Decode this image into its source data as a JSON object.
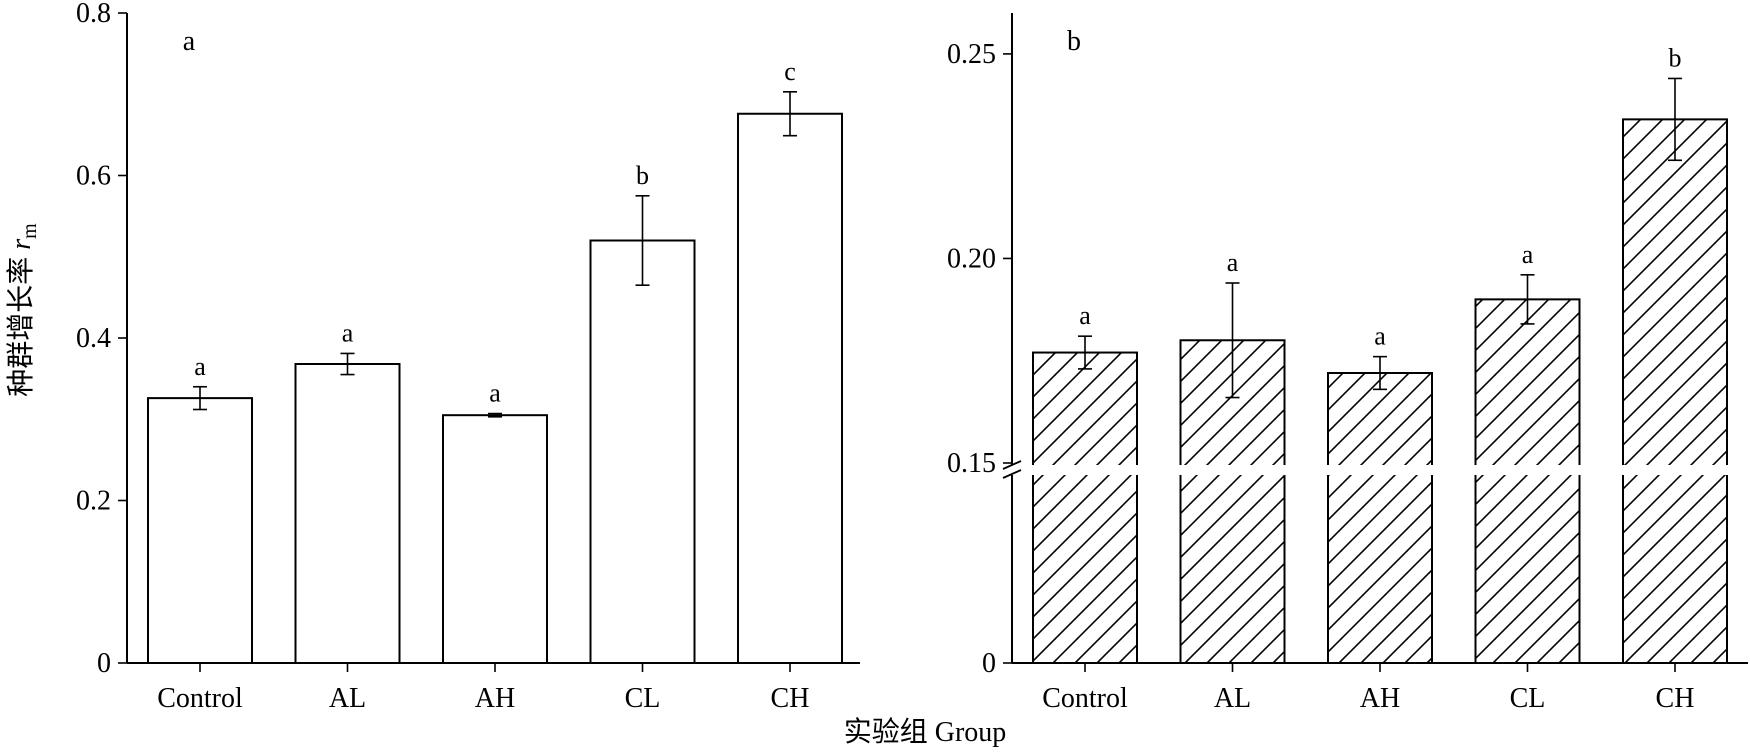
{
  "ylabel": {
    "main": "种群增长率 ",
    "var": "r",
    "sub": "m"
  },
  "xlabel": "实验组 Group",
  "chart_data": [
    {
      "type": "bar",
      "panel_label": "a",
      "categories": [
        "Control",
        "AL",
        "AH",
        "CL",
        "CH"
      ],
      "values": [
        0.326,
        0.368,
        0.305,
        0.52,
        0.676
      ],
      "errors": [
        0.014,
        0.013,
        0.002,
        0.055,
        0.027
      ],
      "significance": [
        "a",
        "a",
        "a",
        "b",
        "c"
      ],
      "ylim": [
        0,
        0.8
      ],
      "yticks": [
        0,
        0.2,
        0.4,
        0.6,
        0.8
      ],
      "ytick_labels": [
        "0",
        "0.2",
        "0.4",
        "0.6",
        "0.8"
      ],
      "fill": "none",
      "bar_stroke": "#000000"
    },
    {
      "type": "bar",
      "panel_label": "b",
      "categories": [
        "Control",
        "AL",
        "AH",
        "CL",
        "CH"
      ],
      "values": [
        0.177,
        0.18,
        0.172,
        0.19,
        0.234
      ],
      "errors": [
        0.004,
        0.014,
        0.004,
        0.006,
        0.01
      ],
      "significance": [
        "a",
        "a",
        "a",
        "a",
        "b"
      ],
      "ylim": [
        0,
        0.26
      ],
      "axis_break": [
        0,
        0.15
      ],
      "yticks": [
        0,
        0.15,
        0.2,
        0.25
      ],
      "ytick_labels": [
        "0",
        "0.15",
        "0.20",
        "0.25"
      ],
      "fill": "diagonal-hatch",
      "bar_stroke": "#000000"
    }
  ]
}
